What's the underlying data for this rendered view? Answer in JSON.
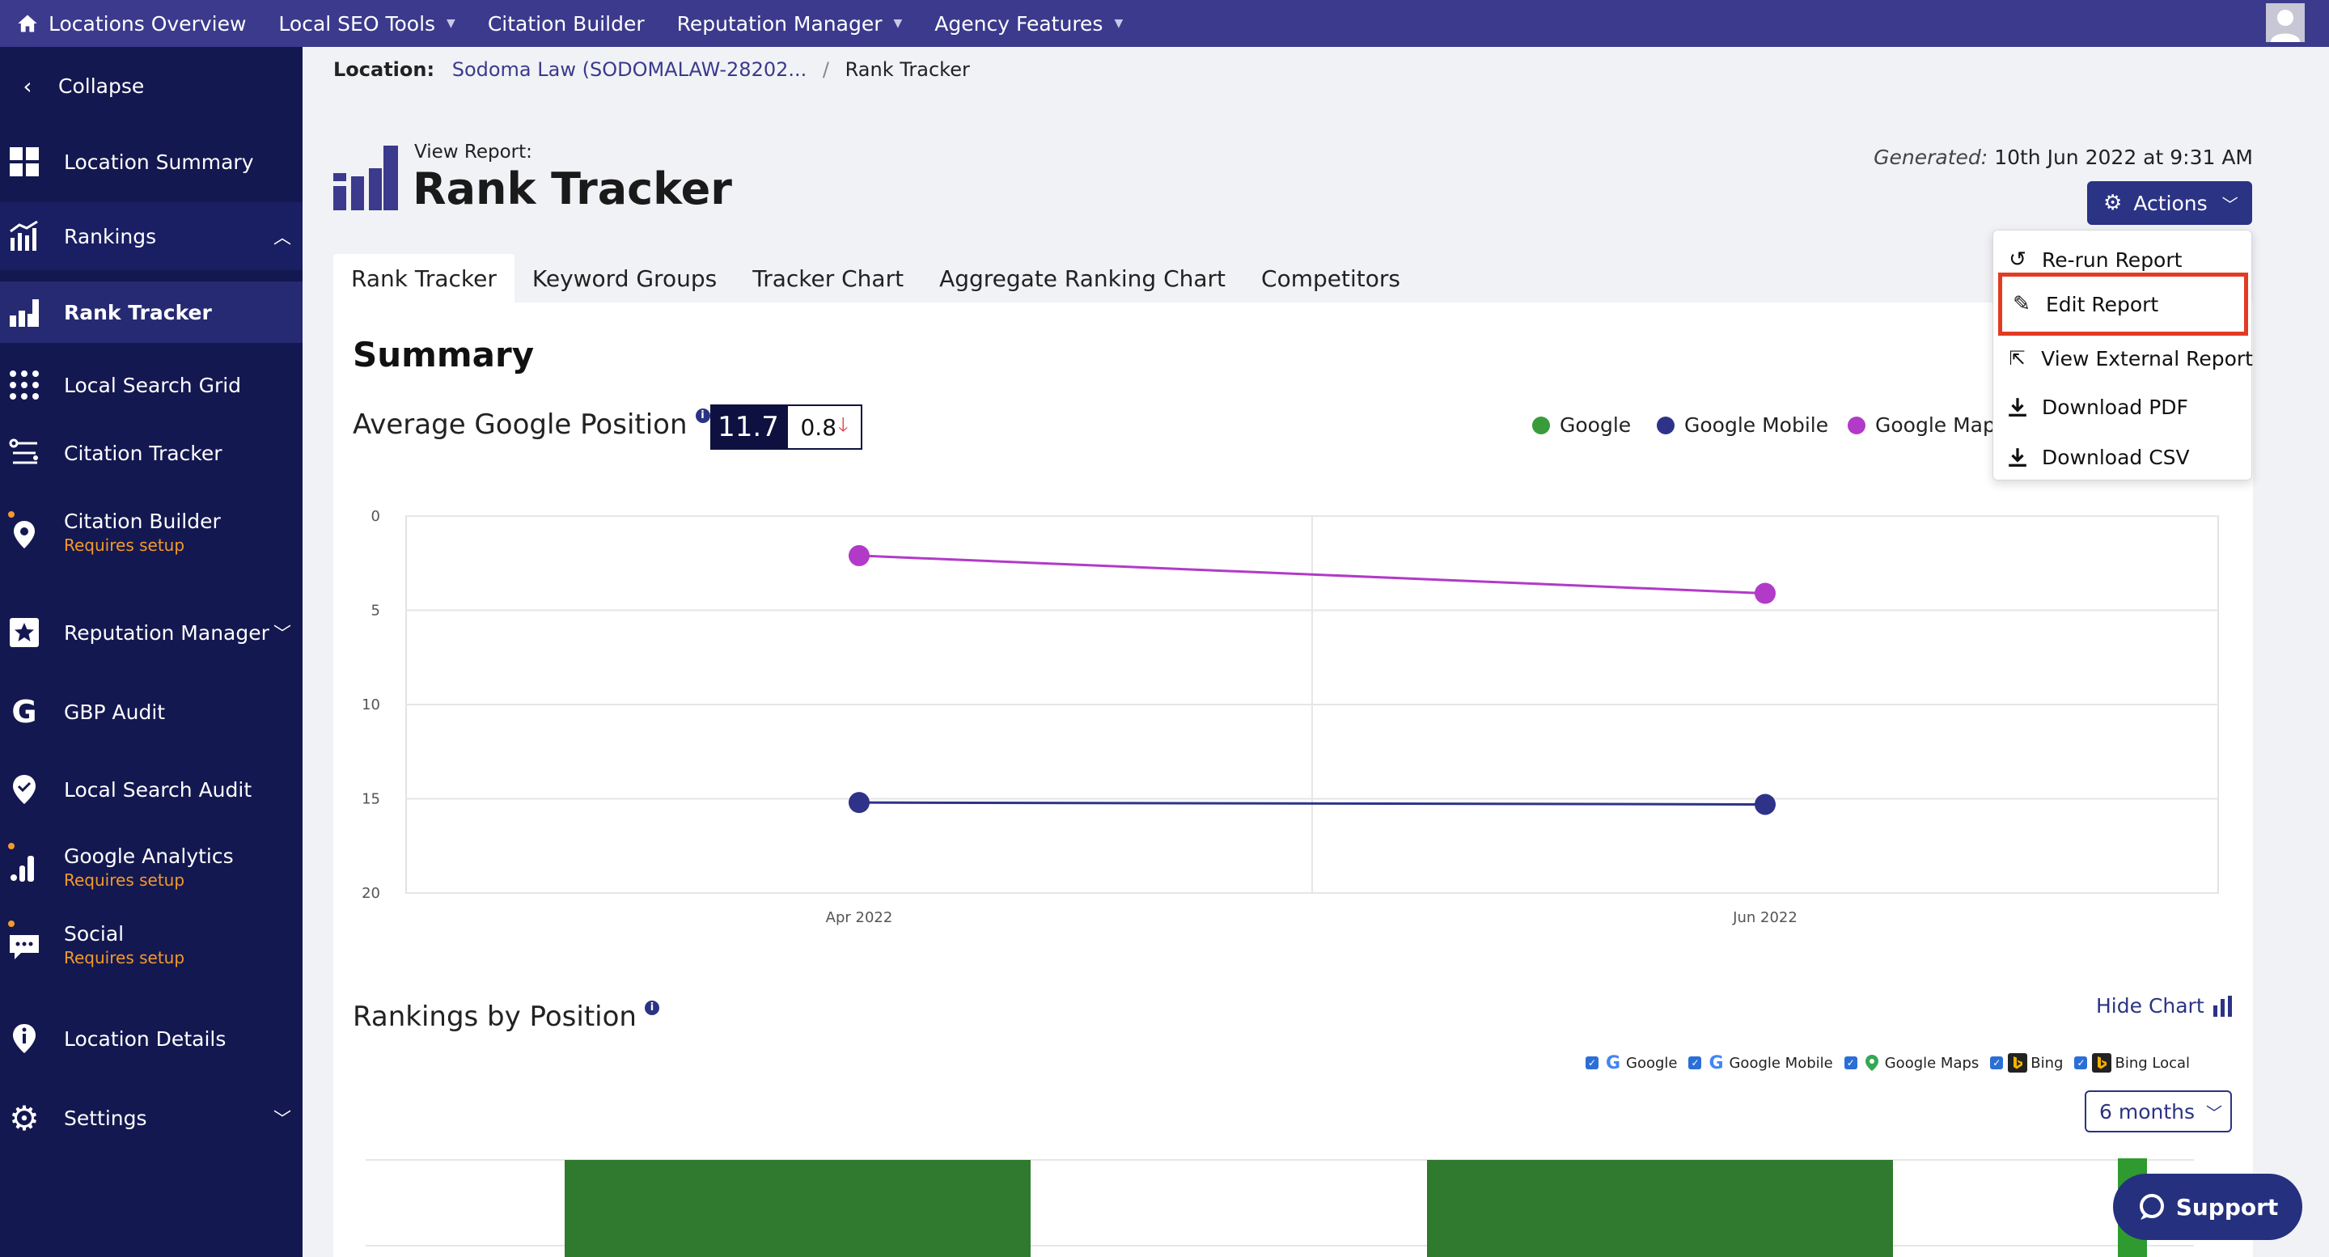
{
  "topnav": {
    "items": [
      {
        "label": "Locations Overview",
        "has_caret": false
      },
      {
        "label": "Local SEO Tools",
        "has_caret": true
      },
      {
        "label": "Citation Builder",
        "has_caret": false
      },
      {
        "label": "Reputation Manager",
        "has_caret": true
      },
      {
        "label": "Agency Features",
        "has_caret": true
      }
    ]
  },
  "sidebar": {
    "collapse_label": "Collapse",
    "items": [
      {
        "label": "Location Summary",
        "icon": "grid-icon"
      },
      {
        "label": "Rankings",
        "icon": "rankings-chart-icon",
        "expanded": true
      },
      {
        "label": "Rank Tracker",
        "icon": "rank-tracker-icon",
        "active": true
      },
      {
        "label": "Local Search Grid",
        "icon": "dots-grid-icon"
      },
      {
        "label": "Citation Tracker",
        "icon": "citation-tracker-icon"
      },
      {
        "label": "Citation Builder",
        "icon": "map-pin-icon",
        "sub": "Requires setup"
      },
      {
        "label": "Reputation Manager",
        "icon": "star-icon"
      },
      {
        "label": "GBP Audit",
        "icon": "google-g-icon"
      },
      {
        "label": "Local Search Audit",
        "icon": "location-check-icon"
      },
      {
        "label": "Google Analytics",
        "icon": "analytics-icon",
        "sub": "Requires setup"
      },
      {
        "label": "Social",
        "icon": "chat-icon",
        "sub": "Requires setup"
      },
      {
        "label": "Location Details",
        "icon": "location-info-icon"
      },
      {
        "label": "Settings",
        "icon": "gear-icon"
      }
    ]
  },
  "breadcrumb": {
    "label": "Location:",
    "location": "Sodoma Law (SODOMALAW-28202...",
    "separator": "/",
    "current": "Rank Tracker"
  },
  "header": {
    "view_report": "View Report:",
    "title": "Rank Tracker",
    "generated_label": "Generated:",
    "generated_value": "10th Jun 2022 at 9:31 AM",
    "actions_label": "Actions"
  },
  "tabs": [
    "Rank Tracker",
    "Keyword Groups",
    "Tracker Chart",
    "Aggregate Ranking Chart",
    "Competitors"
  ],
  "actions_menu": [
    {
      "label": "Re-run Report",
      "icon": "refresh-icon"
    },
    {
      "label": "Edit Report",
      "icon": "pencil-icon",
      "highlighted": true
    },
    {
      "label": "View External Report",
      "icon": "external-link-icon"
    },
    {
      "label": "Download PDF",
      "icon": "download-icon"
    },
    {
      "label": "Download CSV",
      "icon": "download-icon"
    }
  ],
  "summary": {
    "heading": "Summary",
    "avg_label": "Average Google Position",
    "avg_value": "11.7",
    "avg_change": "0.8"
  },
  "legend": [
    {
      "name": "Google",
      "color": "#3a9b3a"
    },
    {
      "name": "Google Mobile",
      "color": "#2e3389"
    },
    {
      "name": "Google Maps",
      "color": "#b23ac8"
    }
  ],
  "chart_data": [
    {
      "type": "line",
      "x": [
        "Apr 2022",
        "Jun 2022"
      ],
      "series": [
        {
          "name": "Google Maps",
          "values": [
            2.1,
            4.1
          ],
          "color": "#b23ac8"
        },
        {
          "name": "Google Mobile",
          "values": [
            15.2,
            15.3
          ],
          "color": "#2e3389"
        }
      ],
      "ylim": [
        0,
        20
      ],
      "y_inverted": true,
      "yticks": [
        0,
        5,
        10,
        15,
        20
      ],
      "grid": true
    }
  ],
  "rankings_by_position": {
    "title": "Rankings by Position",
    "hide_chart_label": "Hide Chart",
    "engines": [
      {
        "label": "Google",
        "icon": "google-icon",
        "checked": true
      },
      {
        "label": "Google Mobile",
        "icon": "google-icon",
        "checked": true
      },
      {
        "label": "Google Maps",
        "icon": "google-maps-icon",
        "checked": true
      },
      {
        "label": "Bing",
        "icon": "bing-icon",
        "checked": true
      },
      {
        "label": "Bing Local",
        "icon": "bing-icon",
        "checked": true
      }
    ],
    "period": "6 months",
    "bar_color": "#2f7a2f"
  },
  "support_label": "Support"
}
